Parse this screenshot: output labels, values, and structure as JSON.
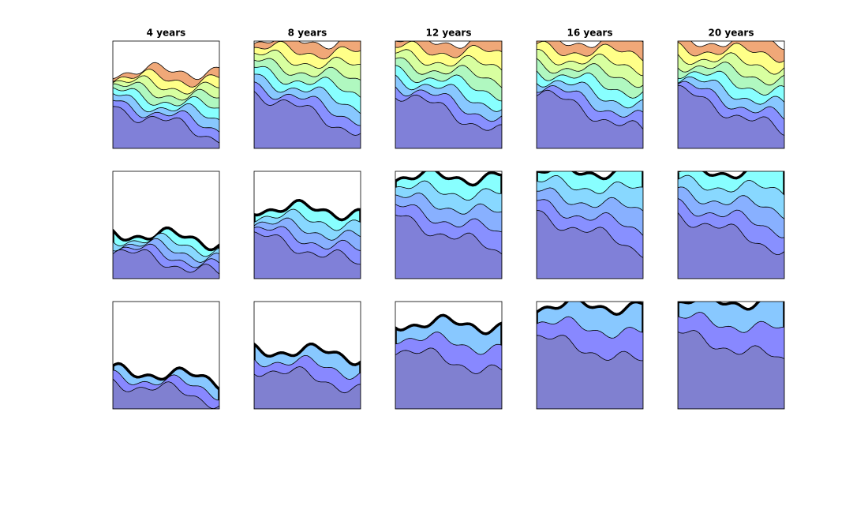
{
  "titles": [
    "4 years",
    "8 years",
    "12 years",
    "16 years",
    "20 years"
  ]
}
